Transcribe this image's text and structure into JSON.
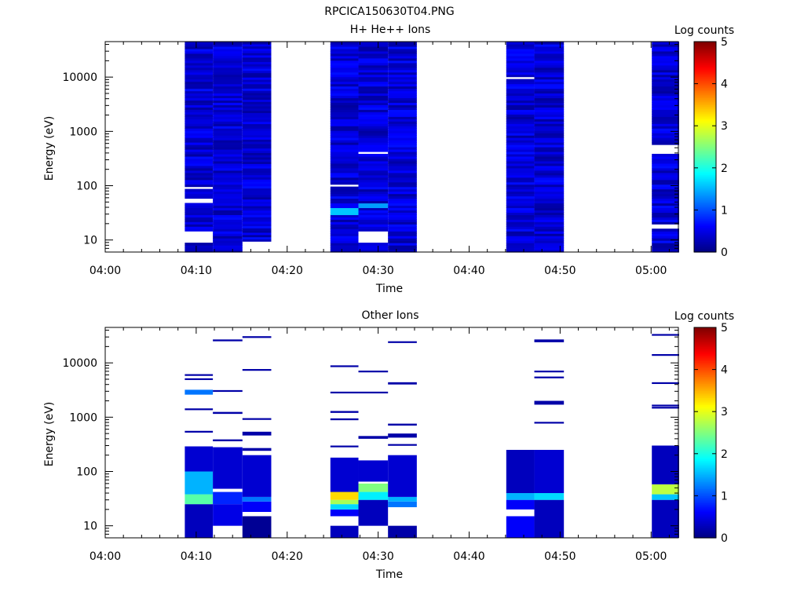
{
  "figure_title": "RPCICA150630T04.PNG",
  "chart_data": [
    {
      "type": "heatmap",
      "title": "H+ He++ Ions",
      "xlabel": "Time",
      "ylabel": "Energy (eV)",
      "yscale": "log",
      "ylim": [
        6,
        45000
      ],
      "xlim": [
        "04:00",
        "05:03"
      ],
      "xticks": [
        "04:00",
        "04:10",
        "04:20",
        "04:30",
        "04:40",
        "04:50",
        "05:00"
      ],
      "yticks": [
        "10",
        "100",
        "1000",
        "10000"
      ],
      "colorbar": {
        "label": "Log counts",
        "range": [
          0,
          5
        ],
        "ticks": [
          "0",
          "1",
          "2",
          "3",
          "4",
          "5"
        ]
      },
      "columns": [
        {
          "start": "04:08:45",
          "end": "04:11:50",
          "energy_min": 6,
          "energy_max": 45000,
          "gaps": [
            [
              9,
              15
            ],
            [
              50,
              58
            ],
            [
              88,
              96
            ]
          ],
          "hot": []
        },
        {
          "start": "04:11:50",
          "end": "04:15:05",
          "energy_min": 6,
          "energy_max": 45000,
          "gaps": [],
          "hot": []
        },
        {
          "start": "04:15:05",
          "end": "04:18:15",
          "energy_min": 9.5,
          "energy_max": 45000,
          "gaps": [],
          "hot": []
        },
        {
          "start": "04:24:45",
          "end": "04:27:50",
          "energy_min": 6,
          "energy_max": 45000,
          "gaps": [
            [
              92,
              105
            ]
          ],
          "hot": [
            {
              "energy": [
                28,
                38
              ],
              "level": 1.6
            }
          ]
        },
        {
          "start": "04:27:50",
          "end": "04:31:05",
          "energy_min": 6,
          "energy_max": 45000,
          "gaps": [
            [
              9,
              14
            ],
            [
              390,
              420
            ]
          ],
          "hot": [
            {
              "energy": [
                38,
                46
              ],
              "level": 1.4
            }
          ]
        },
        {
          "start": "04:31:05",
          "end": "04:34:15",
          "energy_min": 6,
          "energy_max": 45000,
          "gaps": [],
          "hot": []
        },
        {
          "start": "04:44:05",
          "end": "04:47:10",
          "energy_min": 6,
          "energy_max": 45000,
          "gaps": [
            [
              9200,
              10200
            ]
          ],
          "hot": []
        },
        {
          "start": "04:47:10",
          "end": "04:50:25",
          "energy_min": 6,
          "energy_max": 45000,
          "gaps": [],
          "hot": []
        },
        {
          "start": "05:00:05",
          "end": "05:03:05",
          "energy_min": 6,
          "energy_max": 45000,
          "gaps": [
            [
              16,
              20
            ],
            [
              380,
              600
            ]
          ],
          "hot": []
        }
      ]
    },
    {
      "type": "heatmap",
      "title": "Other Ions",
      "xlabel": "Time",
      "ylabel": "Energy (eV)",
      "yscale": "log",
      "ylim": [
        6,
        45000
      ],
      "xlim": [
        "04:00",
        "05:03"
      ],
      "xticks": [
        "04:00",
        "04:10",
        "04:20",
        "04:30",
        "04:40",
        "04:50",
        "05:00"
      ],
      "yticks": [
        "10",
        "100",
        "1000",
        "10000"
      ],
      "colorbar": {
        "label": "Log counts",
        "range": [
          0,
          5
        ],
        "ticks": [
          "0",
          "1",
          "2",
          "3",
          "4",
          "5"
        ]
      },
      "columns": [
        {
          "start": "04:08:45",
          "end": "04:11:50",
          "blocks": [
            [
              6,
              25,
              0.3
            ],
            [
              25,
              38,
              2.3
            ],
            [
              38,
              100,
              1.5
            ],
            [
              100,
              290,
              0.4
            ],
            [
              520,
              560,
              0.2
            ],
            [
              1350,
              1450,
              0.2
            ],
            [
              2600,
              3200,
              1.2
            ],
            [
              4900,
              5200,
              0.2
            ],
            [
              5900,
              6200,
              0.2
            ]
          ]
        },
        {
          "start": "04:11:50",
          "end": "04:15:05",
          "blocks": [
            [
              10,
              25,
              0.5
            ],
            [
              25,
              42,
              0.8
            ],
            [
              48,
              280,
              0.4
            ],
            [
              360,
              390,
              0.2
            ],
            [
              1150,
              1250,
              0.2
            ],
            [
              3000,
              3150,
              0.2
            ],
            [
              25000,
              27000,
              0.2
            ]
          ]
        },
        {
          "start": "04:15:05",
          "end": "04:18:15",
          "blocks": [
            [
              6,
              15,
              0.1
            ],
            [
              18,
              28,
              0.6
            ],
            [
              28,
              34,
              1.2
            ],
            [
              34,
              200,
              0.4
            ],
            [
              240,
              270,
              0.2
            ],
            [
              460,
              540,
              0.2
            ],
            [
              900,
              960,
              0.2
            ],
            [
              7300,
              7700,
              0.2
            ],
            [
              29000,
              31000,
              0.2
            ]
          ]
        },
        {
          "start": "04:24:45",
          "end": "04:27:50",
          "blocks": [
            [
              6,
              10,
              0.3
            ],
            [
              15,
              20,
              0.6
            ],
            [
              20,
              25,
              1.7
            ],
            [
              25,
              30,
              2.7
            ],
            [
              30,
              42,
              3.3
            ],
            [
              42,
              180,
              0.4
            ],
            [
              280,
              300,
              0.2
            ],
            [
              880,
              950,
              0.2
            ],
            [
              1200,
              1300,
              0.2
            ],
            [
              2800,
              2950,
              0.2
            ],
            [
              8500,
              9000,
              0.2
            ]
          ]
        },
        {
          "start": "04:27:50",
          "end": "04:31:05",
          "blocks": [
            [
              10,
              30,
              0.3
            ],
            [
              30,
              42,
              1.8
            ],
            [
              42,
              60,
              2.5
            ],
            [
              65,
              160,
              0.4
            ],
            [
              400,
              450,
              0.2
            ],
            [
              2800,
              2950,
              0.2
            ],
            [
              6800,
              7200,
              0.2
            ]
          ]
        },
        {
          "start": "04:31:05",
          "end": "04:34:15",
          "blocks": [
            [
              6,
              10,
              0.2
            ],
            [
              22,
              28,
              1.2
            ],
            [
              28,
              34,
              1.5
            ],
            [
              34,
              200,
              0.4
            ],
            [
              300,
              320,
              0.2
            ],
            [
              420,
              500,
              0.2
            ],
            [
              700,
              760,
              0.2
            ],
            [
              4000,
              4400,
              0.2
            ],
            [
              24000,
              25000,
              0.2
            ]
          ]
        },
        {
          "start": "04:44:05",
          "end": "04:47:10",
          "blocks": [
            [
              6,
              15,
              0.6
            ],
            [
              20,
              30,
              0.6
            ],
            [
              30,
              40,
              1.5
            ],
            [
              40,
              250,
              0.3
            ]
          ]
        },
        {
          "start": "04:47:10",
          "end": "04:50:25",
          "blocks": [
            [
              6,
              30,
              0.3
            ],
            [
              30,
              40,
              1.7
            ],
            [
              40,
              250,
              0.4
            ],
            [
              780,
              820,
              0.2
            ],
            [
              1700,
              2000,
              0.2
            ],
            [
              5200,
              5600,
              0.2
            ],
            [
              6800,
              7200,
              0.2
            ],
            [
              24000,
              27000,
              0.2
            ]
          ]
        },
        {
          "start": "05:00:05",
          "end": "05:03:05",
          "blocks": [
            [
              6,
              30,
              0.3
            ],
            [
              30,
              38,
              1.6
            ],
            [
              38,
              58,
              2.8
            ],
            [
              58,
              300,
              0.3
            ],
            [
              1450,
              1550,
              0.2
            ],
            [
              1600,
              1700,
              0.2
            ],
            [
              4200,
              4400,
              0.2
            ],
            [
              13500,
              14500,
              0.2
            ],
            [
              32000,
              34000,
              0.2
            ]
          ]
        }
      ]
    }
  ]
}
